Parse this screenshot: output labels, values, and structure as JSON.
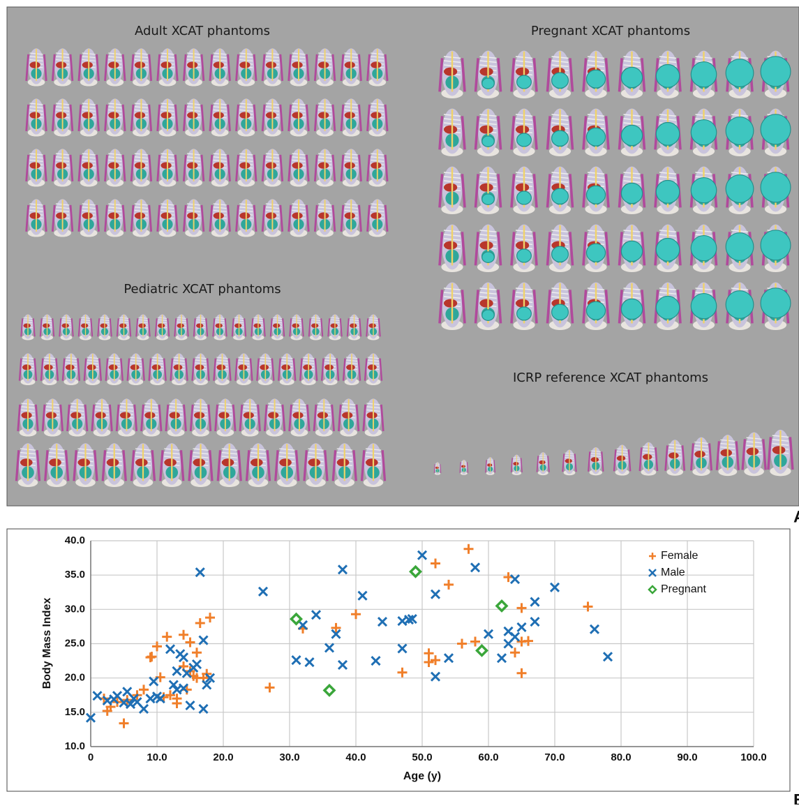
{
  "panel_a": {
    "label": "A",
    "titles": [
      "Adult XCAT phantoms",
      "Pregnant XCAT phantoms",
      "Pediatric XCAT phantoms",
      "ICRP reference XCAT phantoms"
    ]
  },
  "panel_b_label": "B",
  "chart_data": {
    "type": "scatter",
    "x_label": "Age (y)",
    "y_label": "Body Mass Index",
    "xlim": [
      0,
      100
    ],
    "ylim": [
      10,
      40
    ],
    "grid": true,
    "legend": "top-right",
    "xticks": [
      0,
      {
        "value": 10,
        "label": "10.0"
      },
      {
        "value": 20,
        "label": "20.0"
      },
      {
        "value": 30,
        "label": "30.0"
      },
      {
        "value": 40,
        "label": "40.0"
      },
      {
        "value": 50,
        "label": "50.0"
      },
      {
        "value": 60,
        "label": "60.0"
      },
      {
        "value": 70,
        "label": "70.0"
      },
      {
        "value": 80,
        "label": "80.0"
      },
      {
        "value": 90,
        "label": "90.0"
      },
      {
        "value": 100,
        "label": "100.0"
      }
    ],
    "yticks": [
      {
        "value": 10,
        "label": "10.0"
      },
      {
        "value": 15,
        "label": "15.0"
      },
      {
        "value": 20,
        "label": "20.0"
      },
      {
        "value": 25,
        "label": "25.0"
      },
      {
        "value": 30,
        "label": "30.0"
      },
      {
        "value": 35,
        "label": "35.0"
      },
      {
        "value": 40,
        "label": "40.0"
      }
    ],
    "series": [
      {
        "name": "Female",
        "color": "#f07f2a",
        "marker": "plus",
        "x": [
          2,
          2.5,
          3,
          4,
          5,
          5.5,
          7,
          8,
          9,
          9.2,
          10,
          10.5,
          11,
          11.5,
          12,
          13,
          13,
          14,
          14,
          14.5,
          15,
          15,
          15.5,
          16,
          16,
          16.5,
          17,
          17.5,
          18,
          27,
          32,
          37,
          40,
          47,
          51,
          51,
          52,
          52,
          54,
          56,
          57,
          58,
          63,
          64,
          65,
          65,
          65,
          66,
          75
        ],
        "values": [
          17,
          15.2,
          15.8,
          16.5,
          13.4,
          16.8,
          17.5,
          18.3,
          23,
          23.1,
          24.6,
          20.1,
          17.2,
          26,
          17.5,
          16.3,
          17,
          26.3,
          21.7,
          18.3,
          25.2,
          21,
          20.3,
          23.7,
          20,
          28,
          20,
          20.6,
          28.8,
          18.6,
          27.2,
          27.3,
          29.3,
          20.8,
          23.6,
          22.3,
          22.6,
          36.7,
          33.6,
          25,
          38.8,
          25.3,
          34.7,
          23.7,
          30.2,
          25.3,
          20.7,
          25.4,
          30.4
        ]
      },
      {
        "name": "Male",
        "color": "#1f6fb4",
        "marker": "cross",
        "x": [
          0,
          1,
          2.5,
          3.5,
          4,
          5,
          5.5,
          6,
          6.5,
          7,
          8,
          9,
          9.5,
          10,
          10.5,
          12,
          12.5,
          13,
          13,
          13.5,
          14,
          14,
          14.5,
          15,
          15.5,
          16,
          16.5,
          17,
          17,
          17.5,
          18,
          26,
          31,
          32,
          33,
          34,
          36,
          37,
          38,
          38,
          41,
          43,
          44,
          47,
          47,
          48,
          48.5,
          50,
          52,
          52,
          54,
          58,
          60,
          62,
          63,
          63,
          64,
          64,
          65,
          67,
          67,
          70,
          76,
          78
        ],
        "values": [
          14.2,
          17.4,
          16.7,
          16.9,
          17.4,
          16.4,
          18,
          16.2,
          17,
          16.5,
          15.5,
          17,
          19.5,
          17.3,
          17,
          24.2,
          19,
          21,
          18.3,
          23.5,
          18.5,
          23,
          20.7,
          16,
          21.5,
          22,
          35.4,
          15.5,
          25.5,
          19,
          20,
          32.6,
          22.6,
          27.7,
          22.3,
          29.2,
          24.4,
          26.4,
          35.8,
          21.9,
          32,
          22.5,
          28.2,
          28.3,
          24.3,
          28.5,
          28.6,
          37.9,
          32.2,
          20.2,
          22.9,
          36.1,
          26.4,
          22.9,
          26.8,
          25,
          34.4,
          26,
          27.4,
          31.1,
          28.2,
          33.2,
          27.1,
          23.1
        ]
      },
      {
        "name": "Pregnant",
        "color": "#3aa63a",
        "marker": "diamond",
        "x": [
          31,
          36,
          49,
          59,
          62
        ],
        "values": [
          28.6,
          18.2,
          35.5,
          24,
          30.5
        ]
      }
    ]
  }
}
